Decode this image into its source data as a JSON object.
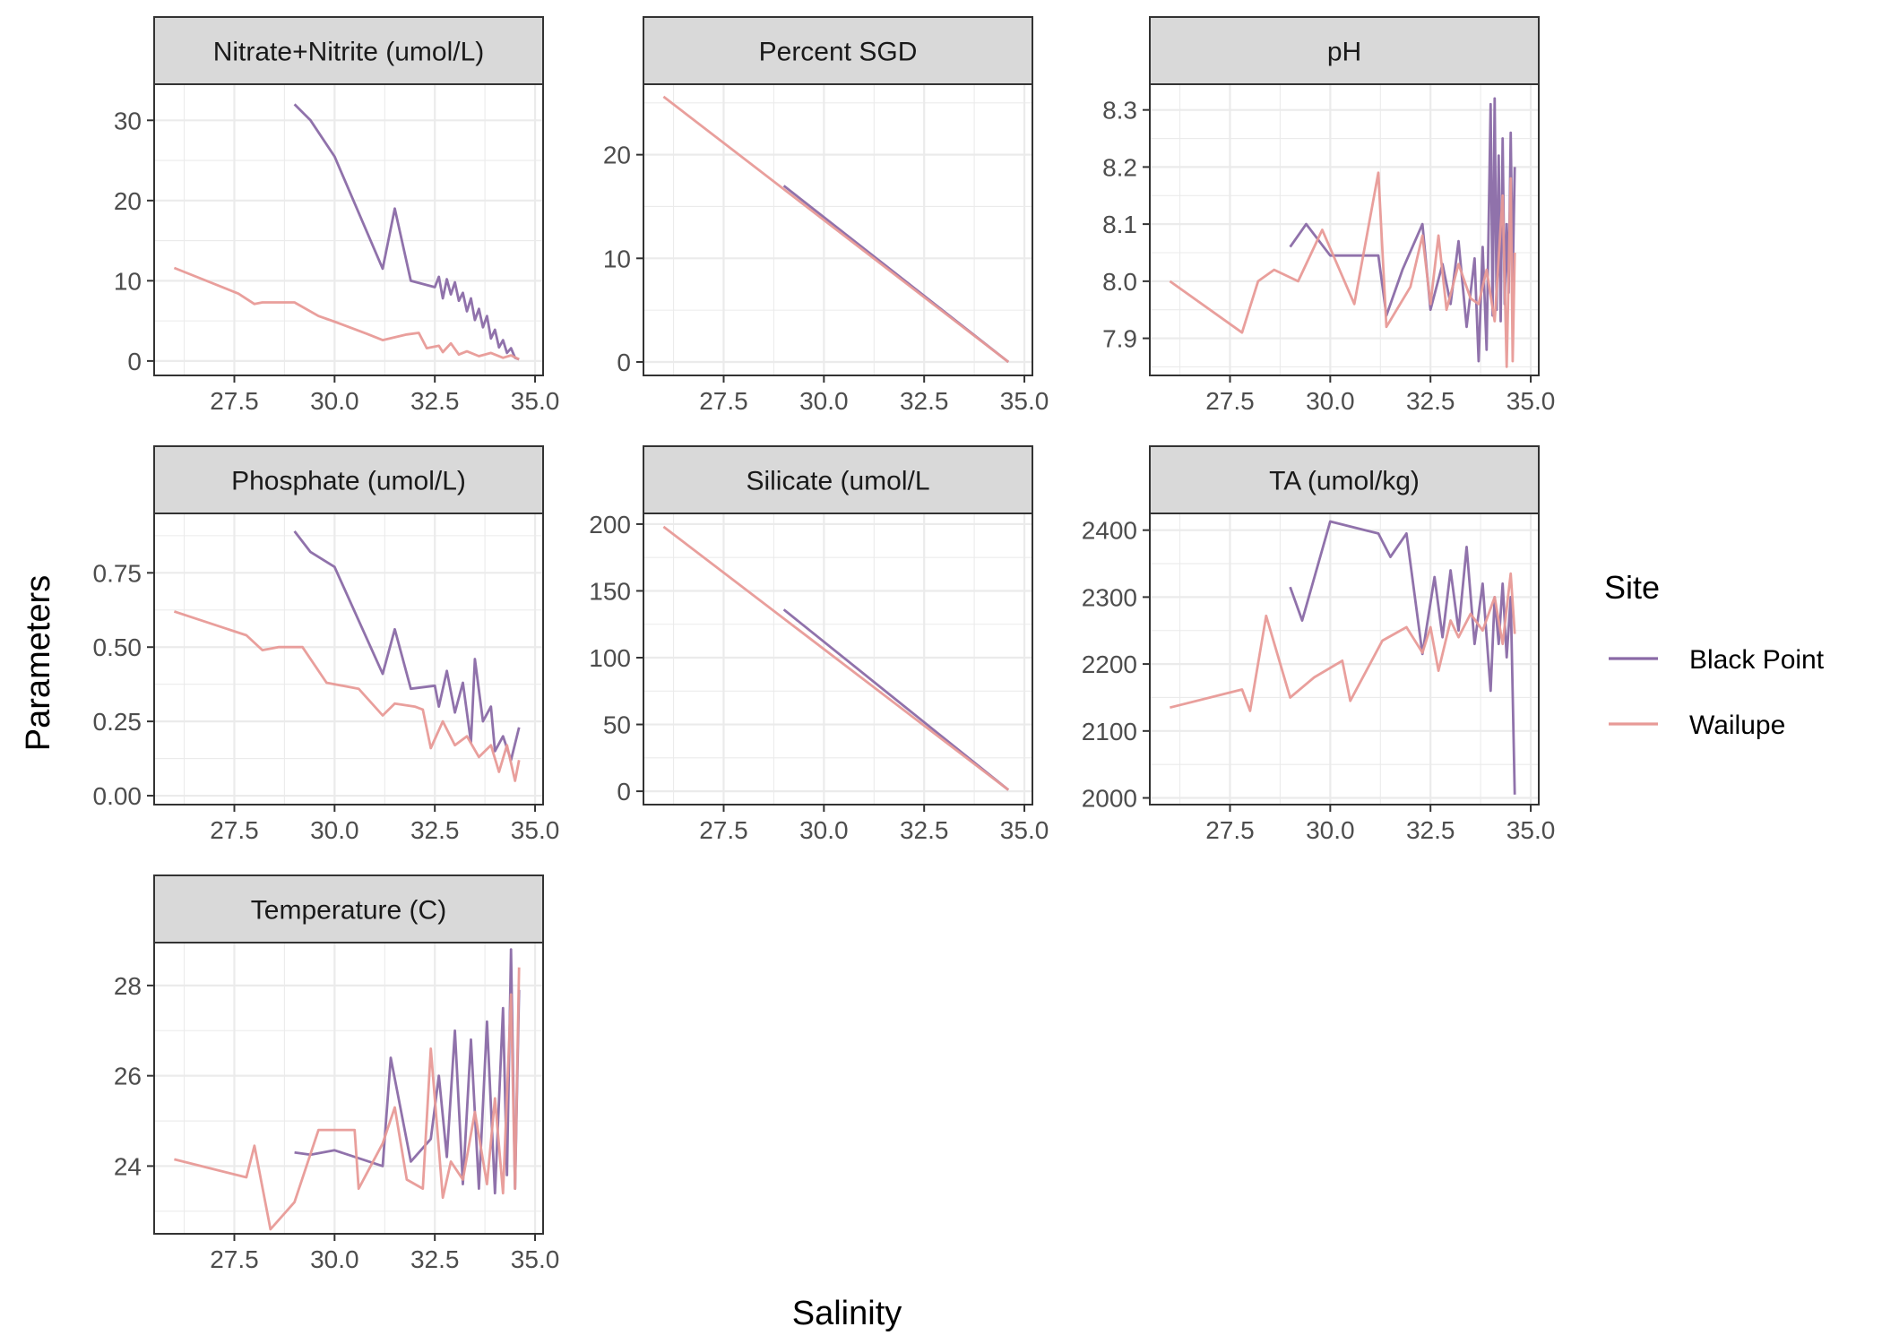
{
  "chart_data": {
    "type": "line",
    "xlabel": "Salinity",
    "ylabel": "Parameters",
    "xlim": [
      25.5,
      35.2
    ],
    "xticks": [
      27.5,
      30.0,
      32.5,
      35.0
    ],
    "grid": true,
    "legend": {
      "title": "Site",
      "position": "right",
      "entries": [
        {
          "name": "Black Point",
          "color": "#8a6aa6"
        },
        {
          "name": "Wailupe",
          "color": "#e89a97"
        }
      ]
    },
    "panels": [
      {
        "title": "Nitrate+Nitrite (umol/L)",
        "ylim": [
          -1.8,
          34.5
        ],
        "yticks": [
          0,
          10,
          20,
          30
        ],
        "tick_labels": [
          "0",
          "10",
          "20",
          "30"
        ],
        "series": [
          {
            "name": "Black Point",
            "x": [
              29.0,
              29.4,
              30.0,
              31.2,
              31.5,
              31.9,
              32.5,
              32.6,
              32.7,
              32.8,
              32.9,
              33.0,
              33.1,
              33.2,
              33.3,
              33.4,
              33.5,
              33.6,
              33.7,
              33.8,
              33.9,
              34.0,
              34.1,
              34.2,
              34.3,
              34.4,
              34.5,
              34.6
            ],
            "y": [
              32,
              30,
              25.5,
              11.5,
              19,
              10,
              9.2,
              10.5,
              7.8,
              10.2,
              8.3,
              9.8,
              7.5,
              8.5,
              6.2,
              7.8,
              5.1,
              6.5,
              4.2,
              5.6,
              2.8,
              3.9,
              1.7,
              2.6,
              1.0,
              1.6,
              0.4,
              0.2
            ]
          },
          {
            "name": "Wailupe",
            "x": [
              26.0,
              27.6,
              28.0,
              28.2,
              29.0,
              29.6,
              30.0,
              30.8,
              31.2,
              31.8,
              32.1,
              32.3,
              32.6,
              32.7,
              32.9,
              33.1,
              33.3,
              33.6,
              33.9,
              34.2,
              34.4,
              34.6
            ],
            "y": [
              11.6,
              8.4,
              7.1,
              7.3,
              7.3,
              5.6,
              4.9,
              3.4,
              2.6,
              3.3,
              3.5,
              1.6,
              1.9,
              1.1,
              2.2,
              0.8,
              1.2,
              0.6,
              1.0,
              0.4,
              0.7,
              0.2
            ]
          }
        ]
      },
      {
        "title": "Percent SGD",
        "ylim": [
          -1.3,
          26.8
        ],
        "yticks": [
          0,
          10,
          20
        ],
        "tick_labels": [
          "0",
          "10",
          "20"
        ],
        "series": [
          {
            "name": "Black Point",
            "x": [
              29.0,
              34.6
            ],
            "y": [
              17.0,
              0.0
            ]
          },
          {
            "name": "Wailupe",
            "x": [
              26.0,
              34.6
            ],
            "y": [
              25.6,
              0.0
            ]
          }
        ]
      },
      {
        "title": "pH",
        "ylim": [
          7.835,
          8.345
        ],
        "yticks": [
          7.9,
          8.0,
          8.1,
          8.2,
          8.3
        ],
        "tick_labels": [
          "7.9",
          "8.0",
          "8.1",
          "8.2",
          "8.3"
        ],
        "series": [
          {
            "name": "Black Point",
            "x": [
              29.0,
              29.4,
              30.0,
              31.2,
              31.4,
              31.8,
              32.3,
              32.5,
              32.8,
              33.0,
              33.2,
              33.4,
              33.6,
              33.7,
              33.8,
              33.9,
              34.0,
              34.05,
              34.1,
              34.15,
              34.2,
              34.25,
              34.3,
              34.35,
              34.4,
              34.45,
              34.5,
              34.55,
              34.6
            ],
            "y": [
              8.06,
              8.1,
              8.045,
              8.045,
              7.94,
              8.02,
              8.1,
              7.95,
              8.03,
              7.96,
              8.07,
              7.92,
              8.04,
              7.86,
              8.06,
              7.88,
              8.31,
              7.94,
              8.32,
              7.95,
              8.22,
              7.93,
              8.25,
              7.96,
              8.1,
              7.98,
              8.26,
              8.0,
              8.2
            ]
          },
          {
            "name": "Wailupe",
            "x": [
              26.0,
              27.8,
              28.2,
              28.6,
              29.2,
              29.8,
              30.6,
              31.2,
              31.4,
              32.0,
              32.3,
              32.5,
              32.7,
              32.9,
              33.2,
              33.5,
              33.7,
              33.9,
              34.1,
              34.3,
              34.4,
              34.5,
              34.55,
              34.6
            ],
            "y": [
              8.0,
              7.91,
              8.0,
              8.02,
              8.0,
              8.09,
              7.96,
              8.19,
              7.92,
              7.99,
              8.08,
              7.96,
              8.08,
              7.95,
              8.03,
              7.97,
              7.96,
              8.02,
              7.93,
              8.15,
              7.85,
              8.18,
              7.86,
              8.05
            ]
          }
        ]
      },
      {
        "title": "Phosphate (umol/L)",
        "ylim": [
          -0.03,
          0.95
        ],
        "yticks": [
          0.0,
          0.25,
          0.5,
          0.75
        ],
        "tick_labels": [
          "0.00",
          "0.25",
          "0.50",
          "0.75"
        ],
        "series": [
          {
            "name": "Black Point",
            "x": [
              29.0,
              29.4,
              30.0,
              31.2,
              31.5,
              31.9,
              32.5,
              32.6,
              32.8,
              33.0,
              33.2,
              33.4,
              33.5,
              33.7,
              33.9,
              34.0,
              34.2,
              34.4,
              34.6
            ],
            "y": [
              0.89,
              0.82,
              0.77,
              0.41,
              0.56,
              0.36,
              0.37,
              0.3,
              0.42,
              0.28,
              0.38,
              0.18,
              0.46,
              0.25,
              0.3,
              0.15,
              0.2,
              0.12,
              0.23
            ]
          },
          {
            "name": "Wailupe",
            "x": [
              26.0,
              27.8,
              28.2,
              28.6,
              29.2,
              29.8,
              30.6,
              31.2,
              31.5,
              32.0,
              32.2,
              32.4,
              32.7,
              33.0,
              33.3,
              33.6,
              33.9,
              34.1,
              34.3,
              34.5,
              34.6
            ],
            "y": [
              0.62,
              0.54,
              0.49,
              0.5,
              0.5,
              0.38,
              0.36,
              0.27,
              0.31,
              0.3,
              0.29,
              0.16,
              0.25,
              0.17,
              0.2,
              0.13,
              0.17,
              0.08,
              0.17,
              0.05,
              0.12
            ]
          }
        ]
      },
      {
        "title": "Silicate (umol/L",
        "ylim": [
          -10,
          208
        ],
        "yticks": [
          0,
          50,
          100,
          150,
          200
        ],
        "tick_labels": [
          "0",
          "50",
          "100",
          "150",
          "200"
        ],
        "series": [
          {
            "name": "Black Point",
            "x": [
              29.0,
              34.6
            ],
            "y": [
              136,
              1
            ]
          },
          {
            "name": "Wailupe",
            "x": [
              26.0,
              34.6
            ],
            "y": [
              198,
              1
            ]
          }
        ]
      },
      {
        "title": "TA (umol/kg)",
        "ylim": [
          1990,
          2425
        ],
        "yticks": [
          2000,
          2100,
          2200,
          2300,
          2400
        ],
        "tick_labels": [
          "2000",
          "2100",
          "2200",
          "2300",
          "2400"
        ],
        "series": [
          {
            "name": "Black Point",
            "x": [
              29.0,
              29.3,
              30.0,
              31.2,
              31.5,
              31.9,
              32.3,
              32.6,
              32.8,
              33.0,
              33.2,
              33.4,
              33.6,
              33.8,
              34.0,
              34.1,
              34.2,
              34.3,
              34.4,
              34.5,
              34.6
            ],
            "y": [
              2315,
              2265,
              2413,
              2395,
              2360,
              2395,
              2215,
              2330,
              2240,
              2340,
              2250,
              2375,
              2230,
              2320,
              2160,
              2300,
              2230,
              2320,
              2210,
              2300,
              2005
            ]
          },
          {
            "name": "Wailupe",
            "x": [
              26.0,
              27.8,
              28.0,
              28.4,
              29.0,
              29.6,
              30.3,
              30.5,
              31.3,
              31.9,
              32.3,
              32.5,
              32.7,
              33.0,
              33.2,
              33.5,
              33.8,
              34.1,
              34.3,
              34.5,
              34.6
            ],
            "y": [
              2135,
              2162,
              2130,
              2272,
              2150,
              2180,
              2205,
              2145,
              2235,
              2255,
              2217,
              2255,
              2190,
              2265,
              2240,
              2275,
              2250,
              2300,
              2230,
              2335,
              2245
            ]
          }
        ]
      },
      {
        "title": "Temperature (C)",
        "ylim": [
          22.5,
          28.95
        ],
        "yticks": [
          24,
          26,
          28
        ],
        "tick_labels": [
          "24",
          "26",
          "28"
        ],
        "series": [
          {
            "name": "Black Point",
            "x": [
              29.0,
              29.4,
              30.0,
              31.2,
              31.4,
              31.9,
              32.4,
              32.6,
              32.8,
              33.0,
              33.2,
              33.4,
              33.6,
              33.8,
              34.0,
              34.2,
              34.3,
              34.4,
              34.5,
              34.6
            ],
            "y": [
              24.3,
              24.25,
              24.35,
              24.0,
              26.4,
              24.1,
              24.6,
              26.0,
              24.2,
              27.0,
              23.6,
              26.8,
              23.5,
              27.2,
              23.4,
              27.5,
              23.8,
              28.8,
              23.5,
              27.9
            ]
          },
          {
            "name": "Wailupe",
            "x": [
              26.0,
              27.8,
              28.0,
              28.4,
              29.0,
              29.6,
              30.5,
              30.6,
              31.2,
              31.5,
              31.8,
              32.2,
              32.4,
              32.7,
              32.9,
              33.2,
              33.5,
              33.8,
              34.0,
              34.2,
              34.4,
              34.5,
              34.6
            ],
            "y": [
              24.15,
              23.75,
              24.45,
              22.6,
              23.2,
              24.8,
              24.8,
              23.5,
              24.5,
              25.3,
              23.7,
              23.5,
              26.6,
              23.3,
              24.1,
              23.7,
              25.2,
              23.6,
              25.5,
              23.4,
              27.8,
              23.5,
              28.4
            ]
          }
        ]
      }
    ]
  }
}
